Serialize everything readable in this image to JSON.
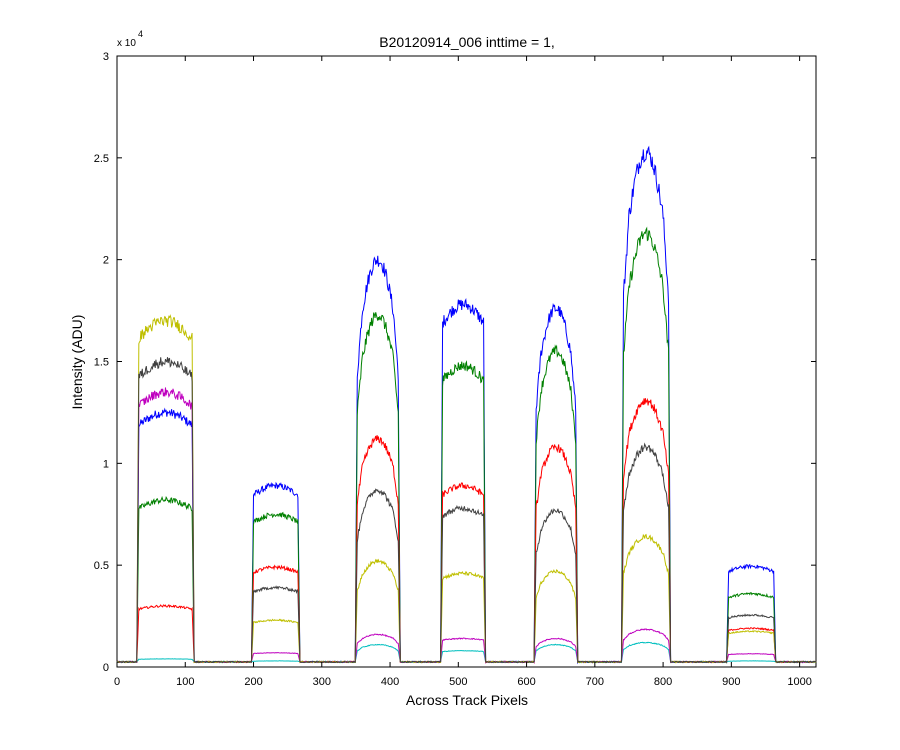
{
  "chart_data": {
    "type": "line",
    "title": "B20120914_006 inttime = 1,",
    "xlabel": "Across Track Pixels",
    "ylabel": "Intensity (ADU)",
    "y_multiplier_label": "x 10",
    "y_multiplier_exponent": "4",
    "xlim": [
      0,
      1024
    ],
    "ylim": [
      0,
      30000
    ],
    "xticks": [
      0,
      100,
      200,
      300,
      400,
      500,
      600,
      700,
      800,
      900,
      1000
    ],
    "xtick_labels": [
      "0",
      "100",
      "200",
      "300",
      "400",
      "500",
      "600",
      "700",
      "800",
      "900",
      "1000"
    ],
    "yticks": [
      0,
      5000,
      10000,
      15000,
      20000,
      25000,
      30000
    ],
    "ytick_labels": [
      "0",
      "0.5",
      "1",
      "1.5",
      "2",
      "2.5",
      "3"
    ],
    "grid": false,
    "legend": "none",
    "segments": [
      {
        "start": 32,
        "end": 110,
        "shape": "flat"
      },
      {
        "start": 200,
        "end": 265,
        "shape": "flat"
      },
      {
        "start": 352,
        "end": 412,
        "shape": "peak"
      },
      {
        "start": 477,
        "end": 537,
        "shape": "flat"
      },
      {
        "start": 614,
        "end": 672,
        "shape": "peak"
      },
      {
        "start": 742,
        "end": 808,
        "shape": "peak"
      },
      {
        "start": 896,
        "end": 962,
        "shape": "flat"
      }
    ],
    "background_level": 250,
    "series": [
      {
        "color": "#0000ff",
        "peaks": [
          12500,
          8900,
          20000,
          17800,
          17600,
          25300,
          4950
        ]
      },
      {
        "color": "#008000",
        "peaks": [
          8200,
          7500,
          17300,
          14800,
          15500,
          21300,
          3600
        ]
      },
      {
        "color": "#ff0000",
        "peaks": [
          3000,
          4900,
          11200,
          8900,
          10800,
          13100,
          1900
        ]
      },
      {
        "color": "#00bfbf",
        "peaks": [
          400,
          300,
          1100,
          800,
          1100,
          1200,
          300
        ]
      },
      {
        "color": "#bf00bf",
        "peaks": [
          13500,
          700,
          1600,
          1400,
          1400,
          1850,
          650
        ]
      },
      {
        "color": "#bfbf00",
        "peaks": [
          17000,
          2300,
          5200,
          4600,
          4700,
          6400,
          1750
        ]
      },
      {
        "color": "#404040",
        "peaks": [
          15000,
          3900,
          8700,
          7800,
          7700,
          10800,
          2550
        ]
      }
    ]
  }
}
